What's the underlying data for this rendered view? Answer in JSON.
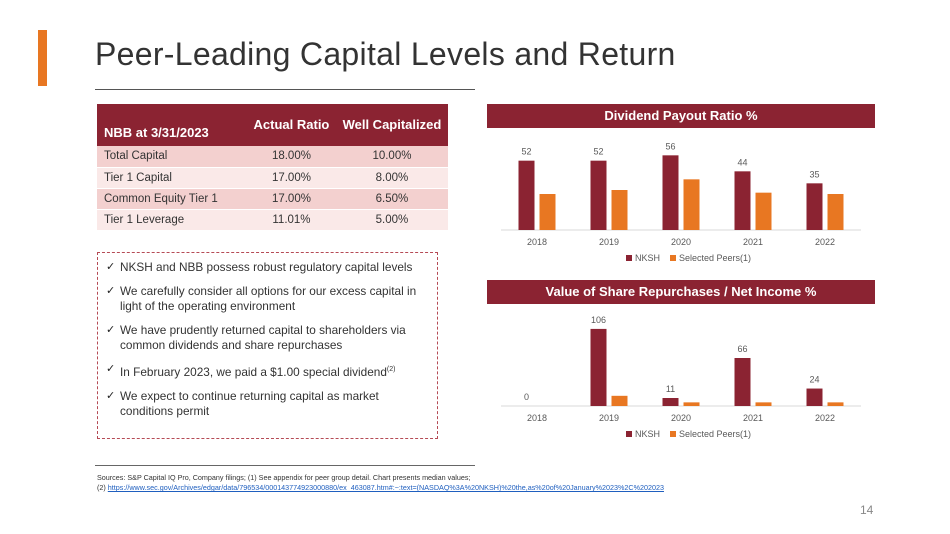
{
  "page": {
    "title": "Peer-Leading Capital Levels and Return",
    "page_number": "14",
    "accent_color": "#e87722",
    "brand_color": "#8b2332"
  },
  "capital_table": {
    "headers": [
      "NBB at 3/31/2023",
      "Actual Ratio",
      "Well Capitalized"
    ],
    "rows": [
      [
        "Total Capital",
        "18.00%",
        "10.00%"
      ],
      [
        "Tier 1 Capital",
        "17.00%",
        "8.00%"
      ],
      [
        "Common Equity Tier 1",
        "17.00%",
        "6.50%"
      ],
      [
        "Tier 1 Leverage",
        "11.01%",
        "5.00%"
      ]
    ]
  },
  "bullets": [
    "NKSH and NBB possess robust regulatory capital levels",
    "We carefully consider all options for our excess capital in light of the operating environment",
    "We have prudently returned capital to shareholders via common dividends and share repurchases",
    "In February 2023, we paid a $1.00 special dividend",
    "We expect to continue returning capital as market conditions permit"
  ],
  "bullet_footnote": "(2)",
  "chart_data": [
    {
      "type": "bar",
      "title": "Dividend Payout Ratio %",
      "categories": [
        "2018",
        "2019",
        "2020",
        "2021",
        "2022"
      ],
      "series": [
        {
          "name": "NKSH",
          "color": "#8b2332",
          "values": [
            52,
            52,
            56,
            44,
            35
          ],
          "labels": [
            "52",
            "52",
            "56",
            "44",
            "35"
          ]
        },
        {
          "name": "Selected Peers(1)",
          "color": "#e87722",
          "values": [
            27,
            30,
            38,
            28,
            27
          ]
        }
      ],
      "ylim": [
        0,
        60
      ],
      "legend": "bottom"
    },
    {
      "type": "bar",
      "title": "Value of Share Repurchases / Net Income %",
      "categories": [
        "2018",
        "2019",
        "2020",
        "2021",
        "2022"
      ],
      "series": [
        {
          "name": "NKSH",
          "color": "#8b2332",
          "values": [
            0,
            106,
            11,
            66,
            24
          ],
          "labels": [
            "0",
            "106",
            "11",
            "66",
            "24"
          ]
        },
        {
          "name": "Selected Peers(1)",
          "color": "#e87722",
          "values": [
            0,
            14,
            5,
            5,
            5
          ]
        }
      ],
      "ylim": [
        0,
        110
      ],
      "legend": "bottom"
    }
  ],
  "footer": {
    "sources_line1": "Sources: S&P Capital IQ Pro, Company filings; (1) See appendix for peer group detail. Chart presents median values;",
    "sources_prefix": "(2) ",
    "sources_link": "https://www.sec.gov/Archives/edgar/data/796534/000143774923000880/ex_463087.htm#:~:text=(NASDAQ%3A%20NKSH)%20the,as%20of%20January%2023%2C%202023"
  }
}
